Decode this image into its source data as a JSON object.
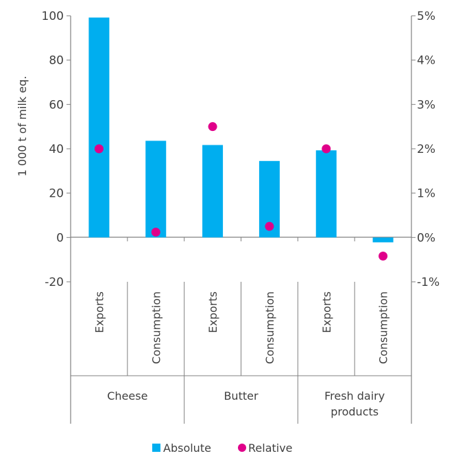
{
  "chart_data": {
    "type": "bar",
    "ylabel": "1 000 t of milk eq.",
    "ylim": [
      -20,
      100
    ],
    "y_ticks": [
      "-20",
      "0",
      "20",
      "40",
      "60",
      "80",
      "100"
    ],
    "y2lim": [
      -1,
      5
    ],
    "y2_ticks": [
      "-1%",
      "0%",
      "1%",
      "2%",
      "3%",
      "4%",
      "5%"
    ],
    "categories": [
      "Exports",
      "Consumption",
      "Exports",
      "Consumption",
      "Exports",
      "Consumption"
    ],
    "groups": [
      {
        "name": "Cheese",
        "span": 2
      },
      {
        "name": "Butter",
        "span": 2
      },
      {
        "name": "Fresh dairy products",
        "span": 2
      }
    ],
    "series": [
      {
        "name": "Absolute",
        "type": "bar",
        "axis": "left",
        "color": "#00aeef",
        "values": [
          99.2,
          43.6,
          41.7,
          34.5,
          39.3,
          -2.2
        ]
      },
      {
        "name": "Relative",
        "type": "scatter",
        "axis": "right",
        "color": "#e0008a",
        "values": [
          2.0,
          0.12,
          2.5,
          0.25,
          2.0,
          -0.42
        ]
      }
    ],
    "legend": {
      "placement": "bottom",
      "items": [
        "Absolute",
        "Relative"
      ]
    },
    "grid": false
  }
}
